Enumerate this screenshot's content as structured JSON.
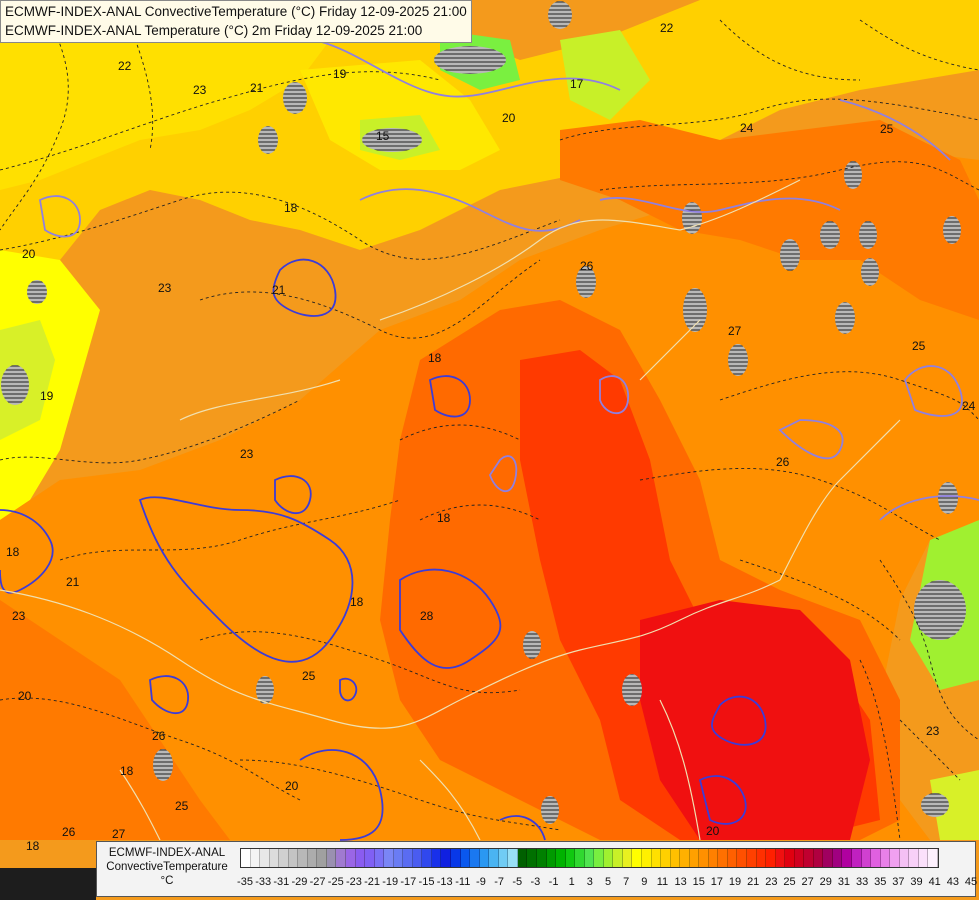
{
  "title": {
    "line1": "ECMWF-INDEX-ANAL ConvectiveTemperature (°C) Friday 12-09-2025 21:00",
    "line2": "ECMWF-INDEX-ANAL Temperature (°C) 2m Friday 12-09-2025 21:00"
  },
  "legend": {
    "line1": "ECMWF-INDEX-ANAL",
    "line2": "ConvectiveTemperature",
    "line3": "°C",
    "ticks": [
      "-35",
      "-33",
      "-31",
      "-29",
      "-27",
      "-25",
      "-23",
      "-21",
      "-19",
      "-17",
      "-15",
      "-13",
      "-11",
      "-9",
      "-7",
      "-5",
      "-3",
      "-1",
      "1",
      "3",
      "5",
      "7",
      "9",
      "11",
      "13",
      "15",
      "17",
      "19",
      "21",
      "23",
      "25",
      "27",
      "29",
      "31",
      "33",
      "35",
      "37",
      "39",
      "41",
      "43",
      "45"
    ],
    "colors": [
      "#ffffff",
      "#f4f4f4",
      "#e8e8e8",
      "#dcdcdc",
      "#d0d0d0",
      "#c4c4c4",
      "#b8b8b8",
      "#acacac",
      "#a0a0a0",
      "#9a90b0",
      "#a07ad0",
      "#9a66e6",
      "#8a5cf0",
      "#8060f4",
      "#7a70f6",
      "#7a86f6",
      "#6a7cf4",
      "#5a6cf2",
      "#4a5cf0",
      "#3048ee",
      "#1830ea",
      "#1020e0",
      "#0838e8",
      "#0a58ee",
      "#1a78f0",
      "#2a98f2",
      "#4ab4f2",
      "#70ccf4",
      "#98e0f6",
      "#006000",
      "#007000",
      "#008000",
      "#009a00",
      "#00b200",
      "#10c810",
      "#30d830",
      "#50e450",
      "#78ee40",
      "#a0f030",
      "#c8f028",
      "#e8f020",
      "#ffff00",
      "#fff000",
      "#ffe000",
      "#ffd000",
      "#ffc000",
      "#ffb000",
      "#ffa000",
      "#ff9000",
      "#ff8000",
      "#ff7000",
      "#ff6000",
      "#ff5000",
      "#ff4000",
      "#ff3000",
      "#ff2000",
      "#f01010",
      "#e00010",
      "#d00020",
      "#c00030",
      "#b00040",
      "#a00060",
      "#a00080",
      "#b000a0",
      "#c020c0",
      "#d040d0",
      "#e060e0",
      "#e880e8",
      "#f0a0f0",
      "#f4c0f4",
      "#f8d0f8",
      "#fbe0fb",
      "#fdf0fd"
    ]
  },
  "map": {
    "contour_labels": [
      {
        "text": "22"
      },
      {
        "text": "23"
      },
      {
        "text": "21"
      },
      {
        "text": "19"
      },
      {
        "text": "15"
      },
      {
        "text": "17"
      },
      {
        "text": "20"
      },
      {
        "text": "22"
      },
      {
        "text": "24"
      },
      {
        "text": "25"
      },
      {
        "text": "18"
      },
      {
        "text": "20"
      },
      {
        "text": "19"
      },
      {
        "text": "23"
      },
      {
        "text": "21"
      },
      {
        "text": "18"
      },
      {
        "text": "26"
      },
      {
        "text": "27"
      },
      {
        "text": "25"
      },
      {
        "text": "26"
      },
      {
        "text": "24"
      },
      {
        "text": "23"
      },
      {
        "text": "18"
      },
      {
        "text": "18"
      },
      {
        "text": "18"
      },
      {
        "text": "21"
      },
      {
        "text": "23"
      },
      {
        "text": "28"
      },
      {
        "text": "25"
      },
      {
        "text": "20"
      },
      {
        "text": "26"
      },
      {
        "text": "18"
      },
      {
        "text": "25"
      },
      {
        "text": "20"
      },
      {
        "text": "27"
      },
      {
        "text": "26"
      },
      {
        "text": "18"
      },
      {
        "text": "23"
      },
      {
        "text": "20"
      }
    ]
  }
}
